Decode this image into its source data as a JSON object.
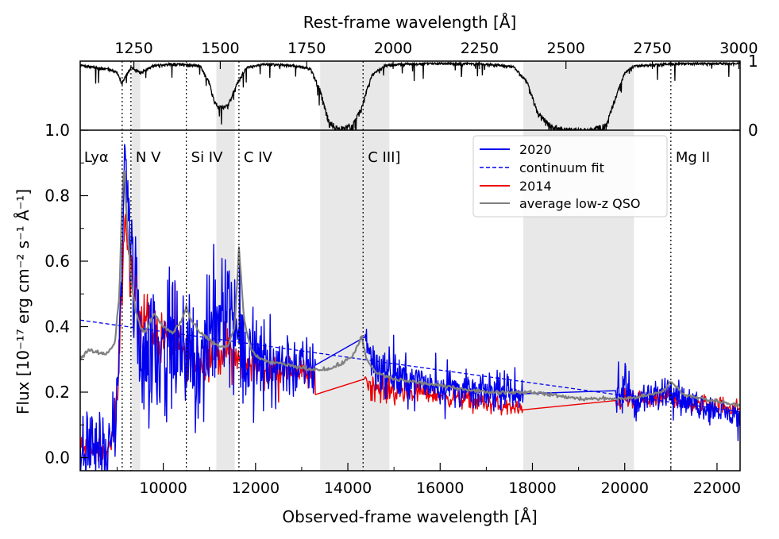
{
  "chart_data": {
    "type": "line",
    "xlabel": "Observed-frame wavelength [Å]",
    "ylabel": "Flux [10⁻¹⁷ erg cm⁻² s⁻¹ Å⁻¹]",
    "top_xlabel": "Rest-frame wavelength [Å]",
    "xlim": [
      8200,
      22500
    ],
    "ylim": [
      -0.04,
      1.0
    ],
    "trans_ylim": [
      0,
      1
    ],
    "rest_per_observed": 0.1335,
    "x_ticks": [
      10000,
      12000,
      14000,
      16000,
      18000,
      20000,
      22000
    ],
    "x_tick_labels": [
      "10000",
      "12000",
      "14000",
      "16000",
      "18000",
      "20000",
      "22000"
    ],
    "y_ticks": [
      0.0,
      0.2,
      0.4,
      0.6,
      0.8,
      1.0
    ],
    "y_tick_labels": [
      "0.0",
      "0.2",
      "0.4",
      "0.6",
      "0.8",
      "1.0"
    ],
    "top_ticks": [
      1250,
      1500,
      1750,
      2000,
      2250,
      2500,
      2750,
      3000
    ],
    "top_tick_labels": [
      "1250",
      "1500",
      "1750",
      "2000",
      "2250",
      "2500",
      "2750",
      "3000"
    ],
    "trans_ticks": [
      0,
      1
    ],
    "trans_tick_labels": [
      "0",
      "1"
    ],
    "shaded_bands": [
      [
        9320,
        9500
      ],
      [
        11150,
        11550
      ],
      [
        13400,
        14350
      ],
      [
        14350,
        14900
      ],
      [
        17800,
        20200
      ]
    ],
    "emission_lines": [
      {
        "label": "Lyα",
        "x": 9110
      },
      {
        "label": "N V",
        "x": 9300
      },
      {
        "label": "Si IV",
        "x": 10500
      },
      {
        "label": "C IV",
        "x": 11640
      },
      {
        "label": "C III]",
        "x": 14330
      },
      {
        "label": "Mg II",
        "x": 21000
      }
    ],
    "legend": [
      "2020",
      "continuum fit",
      "2014",
      "average low-z QSO"
    ],
    "legend_position": "upper-right",
    "colors": {
      "s2020": "#0000ee",
      "continuum": "#0000ee",
      "s2014": "#ee0000",
      "qso": "#808080",
      "band": "#e8e8e8"
    },
    "series": [
      {
        "name": "2020",
        "x": [
          8200,
          8500,
          8800,
          9000,
          9100,
          9170,
          9250,
          9350,
          9500,
          9700,
          9900,
          10100,
          10300,
          10500,
          10700,
          10900,
          11100,
          11300,
          11500,
          11700,
          11900,
          12100,
          12400,
          12700,
          13000,
          13300,
          14360,
          14500,
          14800,
          15200,
          15600,
          16000,
          16400,
          16800,
          17200,
          17600,
          17800,
          19800,
          20000,
          20200,
          20400,
          20700,
          21000,
          21300,
          21700,
          22100,
          22500
        ],
        "y": [
          0.02,
          0.05,
          0.0,
          0.15,
          0.55,
          0.95,
          0.75,
          0.5,
          0.35,
          0.32,
          0.34,
          0.35,
          0.33,
          0.31,
          0.29,
          0.3,
          0.4,
          0.5,
          0.45,
          0.33,
          0.3,
          0.29,
          0.28,
          0.29,
          0.27,
          0.28,
          0.4,
          0.3,
          0.26,
          0.24,
          0.23,
          0.22,
          0.21,
          0.2,
          0.2,
          0.2,
          0.2,
          0.16,
          0.22,
          0.17,
          0.17,
          0.19,
          0.22,
          0.17,
          0.16,
          0.14,
          0.12
        ],
        "noise": [
          0.08,
          0.08,
          0.06,
          0.07,
          0.07,
          0.04,
          0.08,
          0.17,
          0.15,
          0.15,
          0.14,
          0.14,
          0.13,
          0.13,
          0.13,
          0.13,
          0.15,
          0.15,
          0.14,
          0.12,
          0.11,
          0.1,
          0.09,
          0.08,
          0.07,
          0.07,
          0.05,
          0.06,
          0.05,
          0.05,
          0.04,
          0.04,
          0.04,
          0.035,
          0.035,
          0.035,
          0.03,
          0.03,
          0.06,
          0.04,
          0.03,
          0.03,
          0.04,
          0.03,
          0.03,
          0.03,
          0.03
        ],
        "gaps": [
          [
            13300,
            14360
          ],
          [
            17800,
            19800
          ]
        ]
      },
      {
        "name": "continuum fit",
        "x": [
          8200,
          22500
        ],
        "y": [
          0.42,
          0.14
        ]
      },
      {
        "name": "2014",
        "x": [
          8200,
          8500,
          8800,
          9000,
          9100,
          9170,
          9250,
          9350,
          9500,
          9700,
          9900,
          10100,
          10300,
          10500,
          10700,
          10900,
          11100,
          11300,
          11500,
          11700,
          11900,
          12100,
          12400,
          12700,
          13000,
          13300,
          14360,
          14500,
          14800,
          15200,
          15600,
          16000,
          16400,
          16800,
          17200,
          17600,
          17800,
          19800,
          20000,
          20200,
          20400,
          20700,
          21000,
          21300,
          21700,
          22100,
          22500
        ],
        "y": [
          0.03,
          0.02,
          0.01,
          0.15,
          0.5,
          0.75,
          0.6,
          0.5,
          0.45,
          0.4,
          0.37,
          0.36,
          0.34,
          0.32,
          0.3,
          0.3,
          0.32,
          0.33,
          0.31,
          0.29,
          0.28,
          0.28,
          0.27,
          0.27,
          0.26,
          0.24,
          0.25,
          0.22,
          0.21,
          0.2,
          0.2,
          0.19,
          0.18,
          0.17,
          0.16,
          0.15,
          0.14,
          0.17,
          0.18,
          0.17,
          0.17,
          0.18,
          0.19,
          0.17,
          0.16,
          0.16,
          0.15
        ],
        "noise": [
          0.03,
          0.03,
          0.02,
          0.05,
          0.05,
          0.04,
          0.05,
          0.07,
          0.07,
          0.06,
          0.06,
          0.05,
          0.05,
          0.05,
          0.05,
          0.05,
          0.05,
          0.05,
          0.05,
          0.04,
          0.04,
          0.04,
          0.04,
          0.03,
          0.03,
          0.03,
          0.03,
          0.03,
          0.03,
          0.03,
          0.02,
          0.02,
          0.02,
          0.02,
          0.02,
          0.02,
          0.02,
          0.02,
          0.02,
          0.02,
          0.02,
          0.02,
          0.02,
          0.02,
          0.02,
          0.02,
          0.02
        ],
        "gaps": [
          [
            13300,
            14360
          ],
          [
            17800,
            19800
          ]
        ]
      },
      {
        "name": "average low-z QSO",
        "x": [
          8200,
          8400,
          8600,
          8800,
          8950,
          9050,
          9110,
          9150,
          9200,
          9300,
          9400,
          9500,
          9600,
          9800,
          10000,
          10200,
          10400,
          10500,
          10600,
          10800,
          11000,
          11200,
          11400,
          11550,
          11640,
          11750,
          11900,
          12100,
          12400,
          12800,
          13200,
          13600,
          13900,
          14100,
          14300,
          14400,
          14600,
          15000,
          15500,
          16000,
          16500,
          17000,
          17500,
          18000,
          18500,
          19000,
          19500,
          20000,
          20500,
          20800,
          21000,
          21100,
          21300,
          21700,
          22100,
          22500
        ],
        "y": [
          0.3,
          0.33,
          0.32,
          0.32,
          0.35,
          0.5,
          0.8,
          0.9,
          0.75,
          0.55,
          0.45,
          0.4,
          0.38,
          0.44,
          0.4,
          0.38,
          0.42,
          0.46,
          0.42,
          0.38,
          0.36,
          0.34,
          0.34,
          0.4,
          0.64,
          0.42,
          0.33,
          0.3,
          0.29,
          0.28,
          0.27,
          0.27,
          0.29,
          0.31,
          0.37,
          0.3,
          0.26,
          0.24,
          0.23,
          0.22,
          0.21,
          0.2,
          0.2,
          0.2,
          0.19,
          0.18,
          0.18,
          0.18,
          0.19,
          0.2,
          0.23,
          0.22,
          0.19,
          0.18,
          0.17,
          0.16
        ]
      },
      {
        "name": "atmospheric transmission",
        "x": [
          8200,
          8800,
          9000,
          9100,
          9300,
          9500,
          9800,
          10200,
          10800,
          11000,
          11100,
          11200,
          11400,
          11600,
          11800,
          12200,
          12800,
          13200,
          13400,
          13600,
          13800,
          14100,
          14300,
          14500,
          14800,
          15200,
          16000,
          17000,
          17600,
          17900,
          18100,
          18400,
          18800,
          19200,
          19600,
          19800,
          20000,
          20200,
          20400,
          20800,
          21500,
          22500
        ],
        "y": [
          0.95,
          0.9,
          0.85,
          0.7,
          0.92,
          0.85,
          0.95,
          0.97,
          0.95,
          0.7,
          0.45,
          0.35,
          0.38,
          0.7,
          0.92,
          0.97,
          0.95,
          0.9,
          0.6,
          0.15,
          0.05,
          0.1,
          0.35,
          0.8,
          0.95,
          0.97,
          0.98,
          0.97,
          0.93,
          0.7,
          0.3,
          0.08,
          0.03,
          0.03,
          0.1,
          0.5,
          0.85,
          0.94,
          0.95,
          0.97,
          0.98,
          0.98
        ]
      }
    ]
  }
}
